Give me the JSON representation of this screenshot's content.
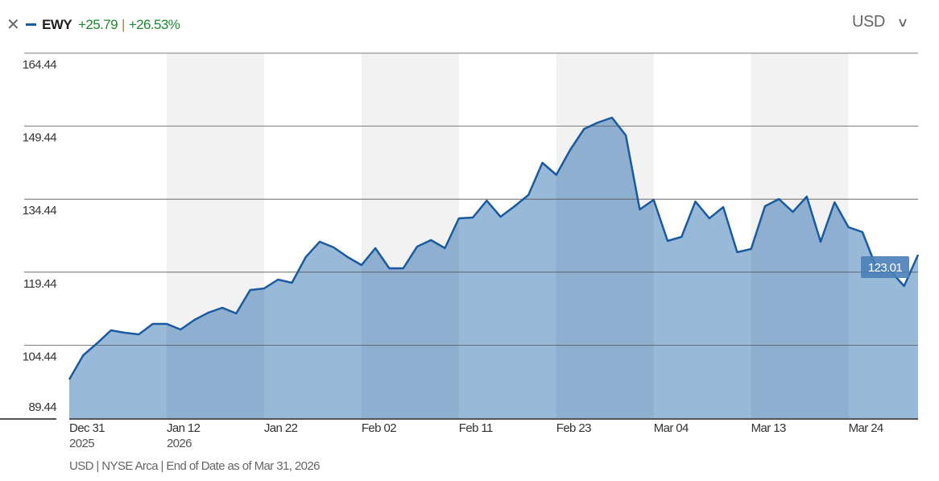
{
  "header": {
    "close_icon": "close-icon",
    "ticker": "EWY",
    "change": "+25.79",
    "change_pct": "+26.53%",
    "currency": "USD",
    "series_color": "#1a5aa0",
    "positive_color": "#1a8a2e"
  },
  "footer": "USD | NYSE Arca | End of Date as of Mar 31, 2026",
  "chart_data": {
    "type": "area",
    "series": [
      {
        "name": "EWY",
        "values": [
          97.39,
          102.35,
          104.84,
          107.49,
          106.99,
          106.66,
          108.81,
          108.81,
          107.65,
          109.64,
          111.13,
          112.12,
          110.96,
          115.76,
          116.09,
          117.92,
          117.25,
          122.55,
          125.7,
          124.54,
          122.55,
          120.9,
          124.37,
          120.23,
          120.23,
          124.7,
          126.03,
          124.37,
          130.5,
          130.66,
          134.14,
          130.83,
          132.98,
          135.3,
          141.92,
          139.44,
          144.57,
          148.88,
          150.2,
          151.19,
          147.55,
          132.32,
          134.31,
          125.86,
          126.69,
          133.98,
          130.5,
          132.82,
          123.55,
          124.21,
          132.98,
          134.47,
          131.82,
          134.97,
          125.7,
          133.81,
          128.68,
          127.69,
          120.4,
          119.74,
          116.59,
          123.01
        ]
      }
    ],
    "x_ticks": [
      {
        "index": 0,
        "label": "Dec 31",
        "sub": "2025"
      },
      {
        "index": 7,
        "label": "Jan 12",
        "sub": "2026"
      },
      {
        "index": 14,
        "label": "Jan 22",
        "sub": ""
      },
      {
        "index": 21,
        "label": "Feb 02",
        "sub": ""
      },
      {
        "index": 28,
        "label": "Feb 11",
        "sub": ""
      },
      {
        "index": 35,
        "label": "Feb 23",
        "sub": ""
      },
      {
        "index": 42,
        "label": "Mar 04",
        "sub": ""
      },
      {
        "index": 49,
        "label": "Mar 13",
        "sub": ""
      },
      {
        "index": 56,
        "label": "Mar 24",
        "sub": ""
      }
    ],
    "y_ticks": [
      "89.44",
      "104.44",
      "119.44",
      "134.44",
      "149.44",
      "164.44"
    ],
    "ylim": [
      89.44,
      164.44
    ],
    "last_value_label": "123.01",
    "shaded_bands": [
      [
        7,
        14
      ],
      [
        21,
        28
      ],
      [
        35,
        42
      ],
      [
        49,
        56
      ]
    ],
    "grid": true,
    "colors": {
      "line": "#1a5aa0",
      "fill": "#99b9d9",
      "fill_shaded": "#8eafd0",
      "band": "#f2f2f2",
      "label_bg": "#4a7fb8"
    }
  }
}
